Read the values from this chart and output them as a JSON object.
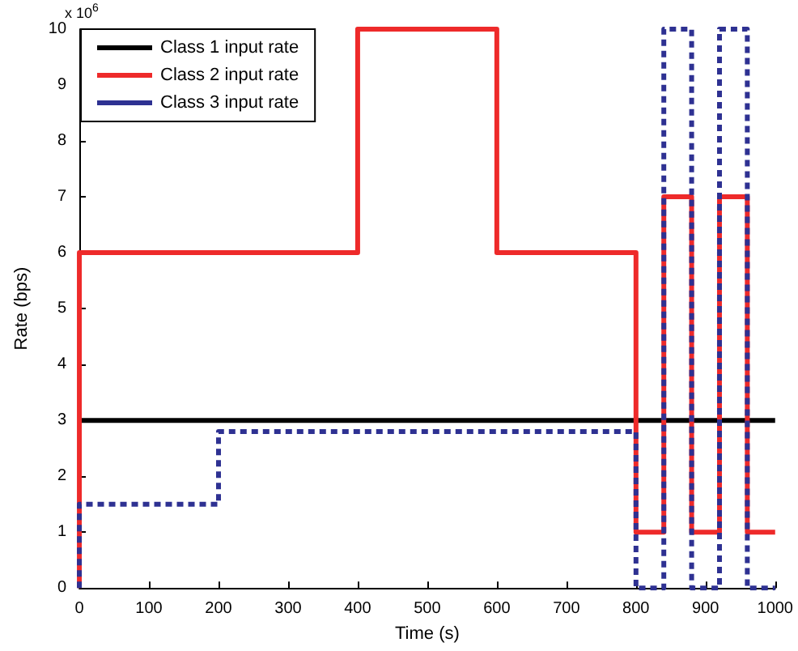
{
  "chart_data": {
    "type": "step",
    "xlabel": "Time (s)",
    "ylabel": "Rate (bps)",
    "annotations": [
      "x 10$^{6}$"
    ],
    "xlim": [
      0,
      1000
    ],
    "xticks": [
      0,
      100,
      200,
      300,
      400,
      500,
      600,
      700,
      800,
      900,
      1000
    ],
    "ylim": [
      0,
      10
    ],
    "yticks": [
      0,
      1,
      2,
      3,
      4,
      5,
      6,
      7,
      8,
      9,
      10
    ],
    "grid": false,
    "legend": "top left",
    "marker": "none",
    "series": [
      {
        "name": "Class 1 input rate",
        "color": "#000000",
        "x": [
          0,
          1000
        ],
        "values": [
          3,
          3
        ],
        "line_style": "solid"
      },
      {
        "name": "Class 2 input rate",
        "color": "#ee2a2a",
        "x": [
          0,
          0,
          400,
          600,
          800,
          840,
          880,
          920,
          960,
          1000
        ],
        "values": [
          0,
          6,
          10,
          6,
          1,
          7,
          1,
          7,
          1,
          1
        ],
        "line_style": "solid"
      },
      {
        "name": "Class 3 input rate",
        "color": "#2e3192",
        "x": [
          0,
          0,
          200,
          800,
          840,
          880,
          920,
          960,
          1000
        ],
        "values": [
          0,
          1.5,
          2.8,
          0,
          10,
          0,
          10,
          0,
          0
        ],
        "line_style": "dashed"
      }
    ]
  }
}
